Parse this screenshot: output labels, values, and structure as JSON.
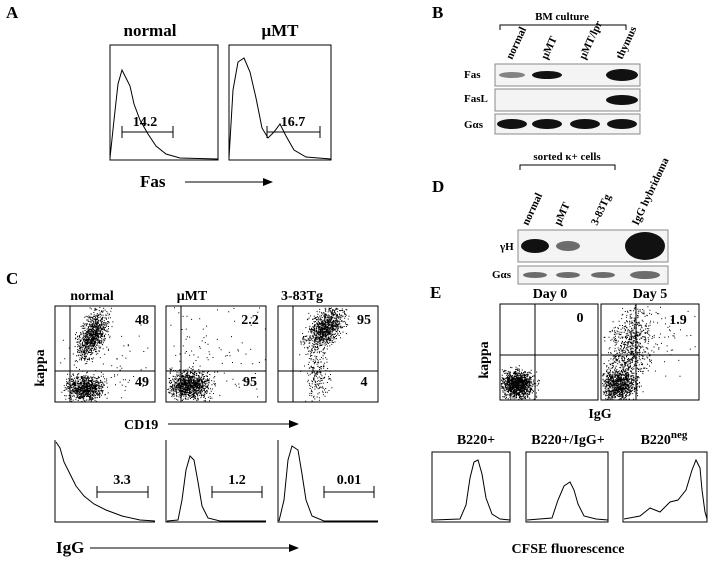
{
  "panel_a": {
    "letter": "A",
    "plots": [
      {
        "title": "normal",
        "gate": "14.2"
      },
      {
        "title": "μMT",
        "gate": "16.7"
      }
    ],
    "x_label": "Fas"
  },
  "panel_b": {
    "letter": "B",
    "bracket": "BM culture",
    "lanes": [
      "normal",
      "μMT",
      "μMT/lpr",
      "thymus"
    ],
    "rows": [
      "Fas",
      "FasL",
      "Gαs"
    ]
  },
  "panel_c": {
    "letter": "C",
    "y_label": "kappa",
    "dot_x_label": "CD19",
    "hist_x_label": "IgG",
    "plots": [
      {
        "title": "normal",
        "upper": "48",
        "lower": "49",
        "gate": "3.3"
      },
      {
        "title": "μMT",
        "upper": "2.2",
        "lower": "95",
        "gate": "1.2"
      },
      {
        "title": "3-83Tg",
        "upper": "95",
        "lower": "4",
        "gate": "0.01"
      }
    ]
  },
  "panel_d": {
    "letter": "D",
    "bracket": "sorted κ+ cells",
    "lanes": [
      "normal",
      "μMT",
      "3-83Tg",
      "IgG hybridoma"
    ],
    "rows": [
      "γH",
      "Gαs"
    ]
  },
  "panel_e": {
    "letter": "E",
    "y_label": "kappa",
    "x_label": "IgG",
    "plots": [
      {
        "title": "Day 0",
        "value": "0"
      },
      {
        "title": "Day 5",
        "value": "1.9"
      }
    ],
    "hist": [
      {
        "base": "B220+"
      },
      {
        "base": "B220+/IgG+"
      },
      {
        "base": "B220",
        "sup": "neg"
      }
    ],
    "hist_x_label": "CFSE fluorescence"
  }
}
